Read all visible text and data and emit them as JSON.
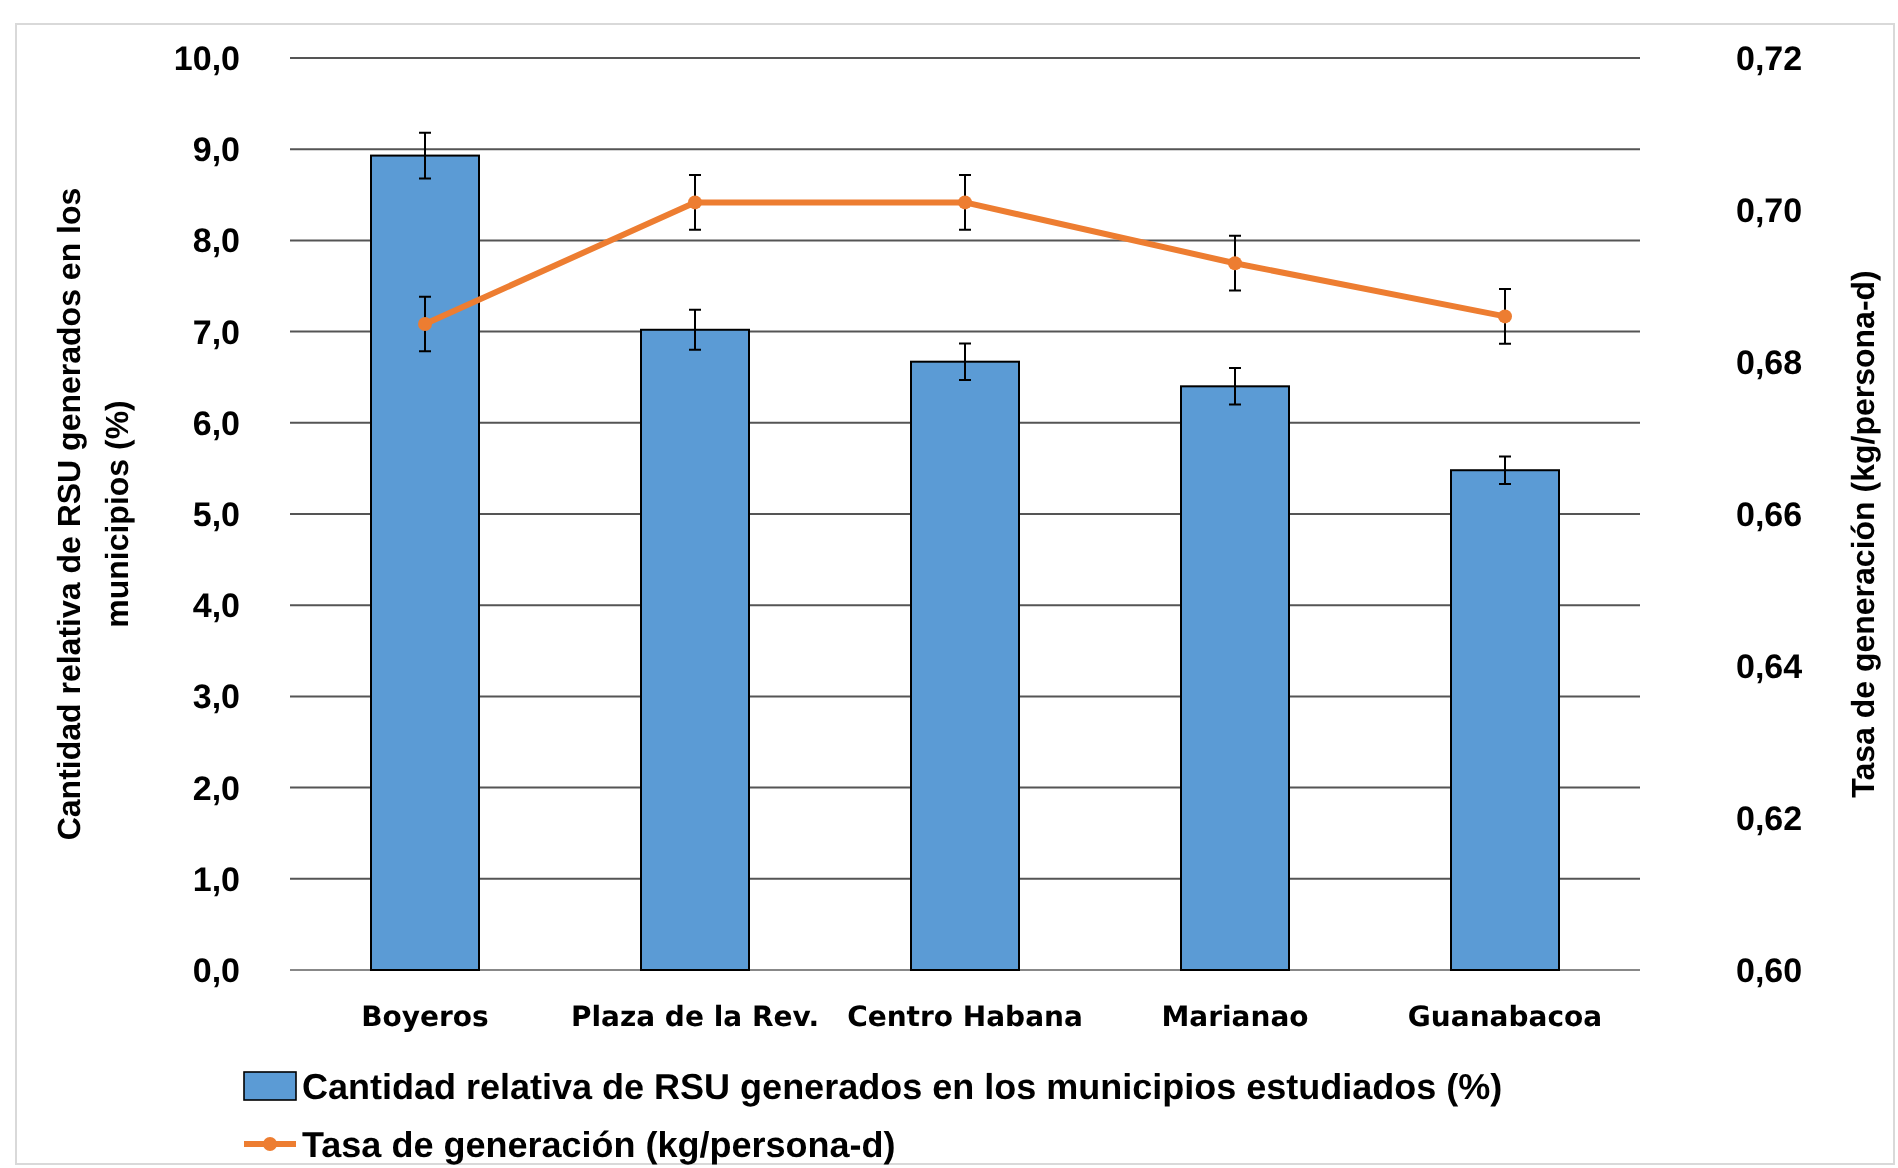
{
  "chart_data": {
    "type": "bar",
    "categories": [
      "Boyeros",
      "Plaza de la Rev.",
      "Centro Habana",
      "Marianao",
      "Guanabacoa"
    ],
    "ylabel": "Cantidad relativa de RSU generados en los\nmunicipios  (%)",
    "y2label": "Tasa de generación (kg/persona-d)",
    "series": [
      {
        "name": "Cantidad relativa de RSU generados en los  municipios estudiados (%)",
        "color": "#5b9bd5",
        "values": [
          8.93,
          7.02,
          6.67,
          6.4,
          5.48
        ],
        "errors": [
          0.25,
          0.22,
          0.2,
          0.2,
          0.15
        ]
      },
      {
        "name": "Tasa de generación (kg/persona-d)",
        "type": "line",
        "axis": "y2",
        "color": "#ed7d31",
        "values": [
          0.685,
          0.701,
          0.701,
          0.693,
          0.686
        ],
        "errors": [
          0.0036,
          0.0036,
          0.0036,
          0.0036,
          0.0036
        ],
        "marker": "circle"
      }
    ],
    "ylim": [
      0,
      10
    ],
    "yticks": [
      {
        "value": 0,
        "label": "0,0"
      },
      {
        "value": 1,
        "label": "1,0"
      },
      {
        "value": 2,
        "label": "2,0"
      },
      {
        "value": 3,
        "label": "3,0"
      },
      {
        "value": 4,
        "label": "4,0"
      },
      {
        "value": 5,
        "label": "5,0"
      },
      {
        "value": 6,
        "label": "6,0"
      },
      {
        "value": 7,
        "label": "7,0"
      },
      {
        "value": 8,
        "label": "8,0"
      },
      {
        "value": 9,
        "label": "9,0"
      },
      {
        "value": 10,
        "label": "10,0"
      }
    ],
    "y2lim": [
      0.6,
      0.72
    ],
    "y2ticks": [
      {
        "value": 0.6,
        "label": "0,60"
      },
      {
        "value": 0.62,
        "label": "0,62"
      },
      {
        "value": 0.64,
        "label": "0,64"
      },
      {
        "value": 0.66,
        "label": "0,66"
      },
      {
        "value": 0.68,
        "label": "0,68"
      },
      {
        "value": 0.7,
        "label": "0,70"
      },
      {
        "value": 0.72,
        "label": "0,72"
      }
    ],
    "grid": "y",
    "legend": "bottom"
  }
}
